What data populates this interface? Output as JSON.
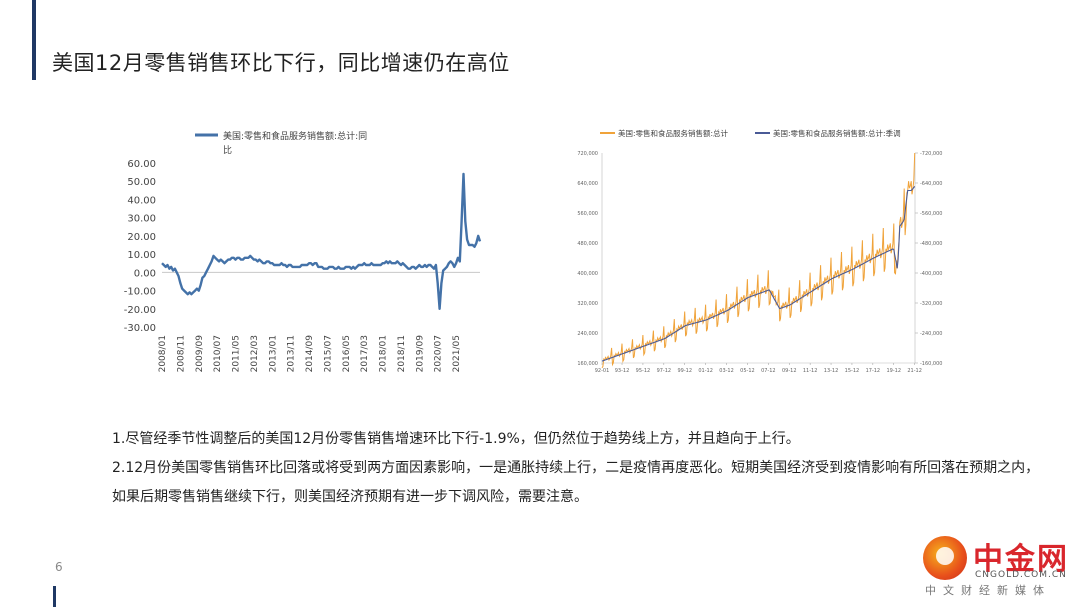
{
  "title": "美国12月零售销售环比下行，同比增速仍在高位",
  "page_number": "6",
  "bullets": [
    "1.尽管经季节性调整后的美国12月份零售销售增速环比下行-1.9%，但仍然位于趋势线上方，并且趋向于上行。",
    "2.12月份美国零售销售环比回落或将受到两方面因素影响，一是通胀持续上行，二是疫情再度恶化。短期美国经济受到疫情影响有所回落在预期之内，如果后期零售销售继续下行，则美国经济预期有进一步下调风险，需要注意。"
  ],
  "logo": {
    "name": "中金网",
    "domain": "CNGOLD.COM.CN",
    "slogan": "中文财经新媒体"
  },
  "chart_data": [
    {
      "type": "line",
      "legend_line1": "美国:零售和食品服务销售额:总计:同",
      "legend_line2": "比",
      "legend_position": "top",
      "color": "#4472a8",
      "ylim": [
        -30,
        60
      ],
      "yticks": [
        "60.00",
        "50.00",
        "40.00",
        "30.00",
        "20.00",
        "10.00",
        "0.00",
        "-10.00",
        "-20.00",
        "-30.00"
      ],
      "xticks": [
        "2008/01",
        "2008/11",
        "2009/09",
        "2010/07",
        "2011/05",
        "2012/03",
        "2013/01",
        "2013/11",
        "2014/09",
        "2015/07",
        "2016/05",
        "2017/03",
        "2018/01",
        "2018/11",
        "2019/09",
        "2020/07",
        "2021/05"
      ],
      "x_start": "2008/01",
      "x_end": "2021/12",
      "values": [
        5,
        4,
        3,
        4,
        2,
        3,
        1,
        2,
        0,
        -2,
        -6,
        -9,
        -10,
        -11,
        -12,
        -11,
        -12,
        -11,
        -10,
        -9,
        -10,
        -7,
        -3,
        -2,
        0,
        2,
        4,
        6,
        9,
        8,
        7,
        6,
        7,
        6,
        5,
        6,
        7,
        7,
        8,
        8,
        7,
        8,
        8,
        7,
        7,
        8,
        8,
        8,
        9,
        8,
        7,
        7,
        6,
        7,
        6,
        5,
        5,
        6,
        6,
        5,
        5,
        4,
        4,
        4,
        4,
        5,
        4,
        4,
        3,
        4,
        4,
        3,
        3,
        3,
        3,
        3,
        4,
        4,
        4,
        4,
        5,
        5,
        4,
        5,
        5,
        3,
        3,
        3,
        2,
        2,
        2,
        3,
        3,
        3,
        2,
        2,
        3,
        2,
        2,
        2,
        3,
        3,
        3,
        2,
        3,
        2,
        3,
        4,
        4,
        4,
        5,
        4,
        4,
        4,
        5,
        4,
        4,
        4,
        4,
        4,
        5,
        5,
        6,
        5,
        6,
        5,
        5,
        5,
        6,
        5,
        4,
        5,
        4,
        3,
        2,
        2,
        3,
        3,
        2,
        3,
        4,
        3,
        3,
        4,
        3,
        4,
        4,
        3,
        2,
        4,
        -6,
        -20,
        -6,
        1,
        2,
        3,
        5,
        6,
        5,
        3,
        5,
        8,
        6,
        28,
        54,
        28,
        18,
        15,
        15,
        15,
        14,
        16,
        20,
        17
      ]
    },
    {
      "type": "line",
      "legend": [
        {
          "name": "美国:零售和食品服务销售额:总计",
          "color": "#f0a33a"
        },
        {
          "name": "美国:零售和食品服务销售额:总计:季调",
          "color": "#4a5a96"
        }
      ],
      "legend_position": "top",
      "ylim": [
        160000,
        720000
      ],
      "yticks_left": [
        "720,000",
        "640,000",
        "560,000",
        "480,000",
        "400,000",
        "320,000",
        "240,000",
        "160,000"
      ],
      "yticks_right": [
        "720,000",
        "640,000",
        "560,000",
        "480,000",
        "400,000",
        "320,000",
        "240,000",
        "160,000"
      ],
      "xticks": [
        "92-01",
        "93-12",
        "95-12",
        "97-12",
        "99-12",
        "01-12",
        "03-12",
        "05-12",
        "07-12",
        "09-12",
        "11-12",
        "13-12",
        "15-12",
        "17-12",
        "19-12",
        "21-12"
      ],
      "x_start": "1992-01",
      "x_end": "2021-12",
      "seasonally_adjusted_anchors": [
        [
          1992.0,
          165000
        ],
        [
          1995.0,
          195000
        ],
        [
          1998.0,
          225000
        ],
        [
          2000.0,
          260000
        ],
        [
          2002.0,
          275000
        ],
        [
          2004.0,
          300000
        ],
        [
          2006.0,
          335000
        ],
        [
          2008.0,
          355000
        ],
        [
          2009.0,
          305000
        ],
        [
          2010.0,
          315000
        ],
        [
          2012.0,
          350000
        ],
        [
          2014.0,
          385000
        ],
        [
          2016.0,
          410000
        ],
        [
          2018.0,
          440000
        ],
        [
          2019.9,
          465000
        ],
        [
          2020.28,
          408000
        ],
        [
          2020.5,
          525000
        ],
        [
          2020.9,
          540000
        ],
        [
          2021.25,
          620000
        ],
        [
          2021.6,
          620000
        ],
        [
          2021.95,
          632000
        ]
      ],
      "unadjusted_seasonal_swing": [
        -0.11,
        -0.09,
        0.02,
        0.0,
        0.04,
        0.01,
        0.02,
        0.04,
        -0.02,
        0.0,
        0.03,
        0.15
      ]
    }
  ]
}
